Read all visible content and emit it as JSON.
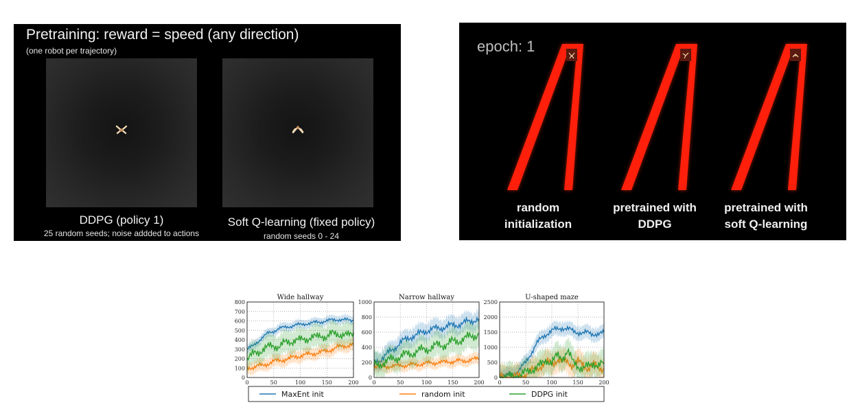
{
  "left_panel": {
    "title": "Pretraining: reward = speed (any direction)",
    "subtitle": "(one robot per trajectory)",
    "captions": [
      {
        "main": "DDPG (policy 1)",
        "sub": "25 random seeds; noise addded to actions"
      },
      {
        "main": "Soft Q-learning (fixed policy)",
        "sub": "random seeds 0 - 24"
      }
    ]
  },
  "right_panel": {
    "epoch_label": "epoch: 1",
    "labels": [
      {
        "line1": "random",
        "line2": "initialization"
      },
      {
        "line1": "pretrained with",
        "line2": "DDPG"
      },
      {
        "line1": "pretrained with",
        "line2": "soft Q-learning"
      }
    ]
  },
  "legend": [
    {
      "name": "MaxEnt init",
      "color": "#1f77b4"
    },
    {
      "name": "random init",
      "color": "#ff7f0e"
    },
    {
      "name": "DDPG init",
      "color": "#2ca02c"
    }
  ],
  "chart_data": [
    {
      "type": "line",
      "title": "Wide hallway",
      "xlim": [
        0,
        200
      ],
      "ylim": [
        0,
        800
      ],
      "xticks": [
        0,
        50,
        100,
        150,
        200
      ],
      "yticks": [
        0,
        100,
        200,
        300,
        400,
        500,
        600,
        700,
        800
      ],
      "grid": true,
      "x": [
        0,
        10,
        20,
        30,
        40,
        50,
        60,
        70,
        80,
        90,
        100,
        110,
        120,
        130,
        140,
        150,
        160,
        170,
        180,
        190,
        200
      ],
      "series": [
        {
          "name": "MaxEnt init",
          "color": "#1f77b4",
          "values": [
            300,
            330,
            380,
            430,
            470,
            490,
            520,
            530,
            540,
            555,
            560,
            570,
            575,
            585,
            590,
            600,
            610,
            615,
            610,
            610,
            605
          ],
          "band": 50
        },
        {
          "name": "random init",
          "color": "#ff7f0e",
          "values": [
            100,
            110,
            120,
            130,
            150,
            170,
            180,
            190,
            200,
            220,
            230,
            240,
            250,
            260,
            270,
            280,
            300,
            320,
            330,
            340,
            350
          ],
          "band": 70
        },
        {
          "name": "DDPG init",
          "color": "#2ca02c",
          "values": [
            200,
            240,
            270,
            300,
            320,
            340,
            330,
            360,
            380,
            400,
            390,
            410,
            430,
            420,
            450,
            430,
            460,
            470,
            450,
            440,
            480
          ],
          "band": 130
        }
      ]
    },
    {
      "type": "line",
      "title": "Narrow hallway",
      "xlim": [
        0,
        200
      ],
      "ylim": [
        0,
        1000
      ],
      "xticks": [
        0,
        50,
        100,
        150,
        200
      ],
      "yticks": [
        0,
        200,
        400,
        600,
        800,
        1000
      ],
      "grid": true,
      "x": [
        0,
        10,
        20,
        30,
        40,
        50,
        60,
        70,
        80,
        90,
        100,
        110,
        120,
        130,
        140,
        150,
        160,
        170,
        180,
        190,
        200
      ],
      "series": [
        {
          "name": "MaxEnt init",
          "color": "#1f77b4",
          "values": [
            200,
            230,
            280,
            340,
            400,
            460,
            500,
            540,
            560,
            590,
            620,
            640,
            650,
            660,
            680,
            690,
            700,
            720,
            740,
            760,
            780
          ],
          "band": 130
        },
        {
          "name": "random init",
          "color": "#ff7f0e",
          "values": [
            150,
            140,
            140,
            150,
            150,
            160,
            160,
            170,
            170,
            180,
            190,
            190,
            200,
            200,
            210,
            210,
            220,
            220,
            230,
            240,
            250
          ],
          "band": 80
        },
        {
          "name": "DDPG init",
          "color": "#2ca02c",
          "values": [
            150,
            180,
            200,
            230,
            260,
            280,
            300,
            320,
            340,
            360,
            380,
            400,
            420,
            430,
            450,
            470,
            490,
            510,
            530,
            560,
            580
          ],
          "band": 180
        }
      ]
    },
    {
      "type": "line",
      "title": "U-shaped maze",
      "xlim": [
        0,
        200
      ],
      "ylim": [
        0,
        2500
      ],
      "xticks": [
        0,
        50,
        100,
        150,
        200
      ],
      "yticks": [
        0,
        500,
        1000,
        1500,
        2000,
        2500
      ],
      "grid": true,
      "x": [
        0,
        10,
        20,
        30,
        40,
        50,
        60,
        70,
        80,
        90,
        100,
        110,
        120,
        130,
        140,
        150,
        160,
        170,
        180,
        190,
        200
      ],
      "series": [
        {
          "name": "MaxEnt init",
          "color": "#1f77b4",
          "values": [
            50,
            60,
            80,
            150,
            300,
            500,
            800,
            1100,
            1300,
            1450,
            1550,
            1600,
            1650,
            1600,
            1550,
            1500,
            1450,
            1500,
            1450,
            1400,
            1500
          ],
          "band": 250
        },
        {
          "name": "random init",
          "color": "#ff7f0e",
          "values": [
            0,
            0,
            0,
            20,
            50,
            100,
            200,
            300,
            400,
            500,
            450,
            600,
            500,
            550,
            400,
            500,
            450,
            300,
            400,
            350,
            300
          ],
          "band": 400
        },
        {
          "name": "DDPG init",
          "color": "#2ca02c",
          "values": [
            0,
            0,
            20,
            40,
            80,
            150,
            250,
            350,
            400,
            600,
            500,
            700,
            650,
            900,
            500,
            400,
            300,
            350,
            500,
            400,
            450
          ],
          "band": 450
        }
      ]
    }
  ]
}
